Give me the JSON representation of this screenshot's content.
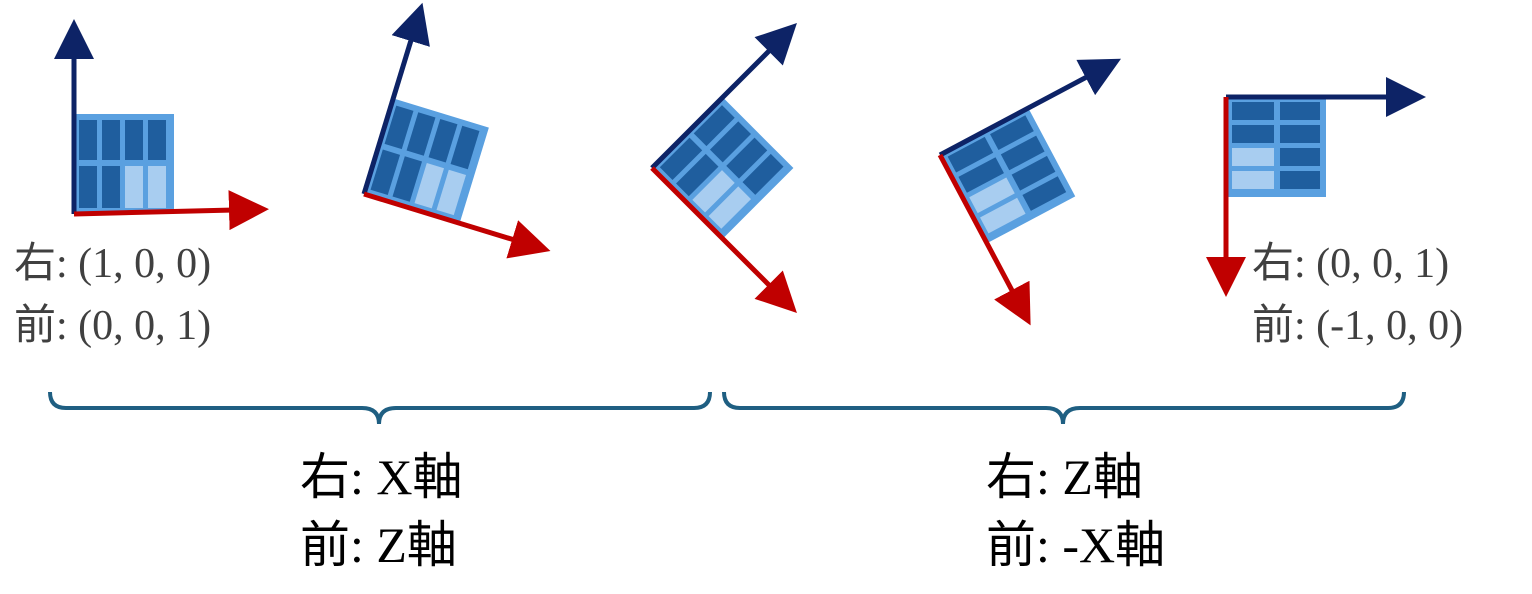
{
  "colors": {
    "up_arrow": "#0d2366",
    "right_arrow": "#c00000",
    "panel_fill": "#5aa0e0",
    "cell_dark": "#1f5e9e",
    "cell_light": "#a8cdf0",
    "bracket": "#1f5f82",
    "text": "#404040",
    "caption": "#000000"
  },
  "icon": "rotating-panel-with-axes",
  "stages": [
    {
      "name": "stage-1",
      "rotation_deg": 0
    },
    {
      "name": "stage-2",
      "rotation_deg": 17
    },
    {
      "name": "stage-3",
      "rotation_deg": 45
    },
    {
      "name": "stage-4",
      "rotation_deg": 62
    },
    {
      "name": "stage-5",
      "rotation_deg": 90
    }
  ],
  "left_vectors": {
    "right": "右: (1, 0, 0)",
    "forward": "前: (0, 0, 1)"
  },
  "right_vectors": {
    "right": "右: (0, 0, 1)",
    "forward": "前: (-1, 0, 0)"
  },
  "left_caption": {
    "right": "右: X軸",
    "forward": "前: Z軸"
  },
  "right_caption": {
    "right": "右: Z軸",
    "forward": "前: -X軸"
  }
}
